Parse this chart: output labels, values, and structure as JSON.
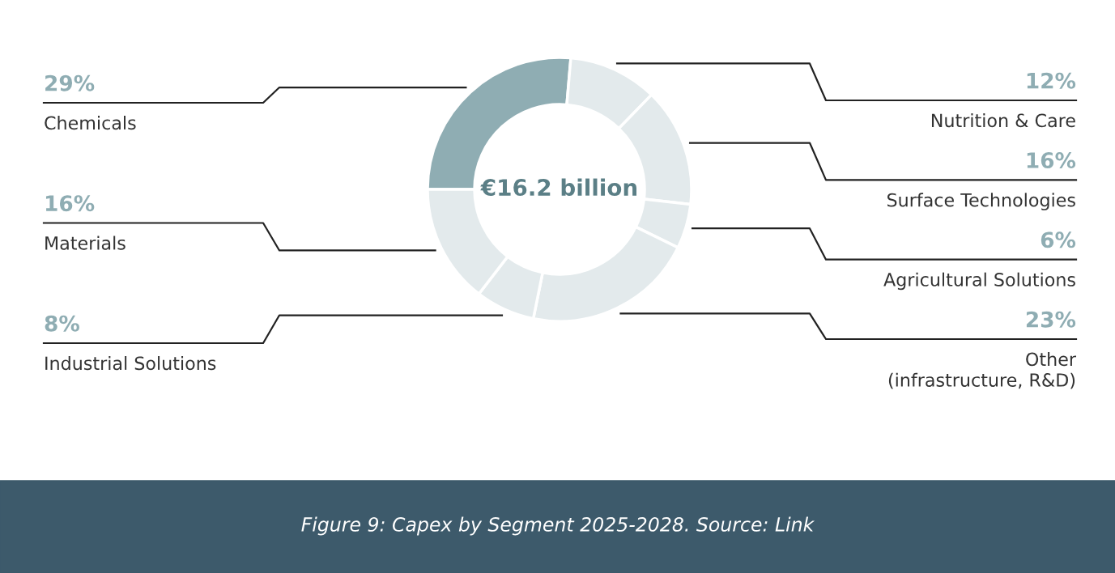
{
  "chart_data": {
    "type": "donut",
    "categories": [
      "Chemicals",
      "Nutrition & Care",
      "Surface Technologies",
      "Agricultural Solutions",
      "Other\n(infrastructure, R&D)",
      "Industrial Solutions",
      "Materials"
    ],
    "values": [
      29,
      12,
      16,
      6,
      23,
      8,
      16
    ],
    "value_labels": [
      "29%",
      "12%",
      "16%",
      "6%",
      "23%",
      "8%",
      "16%"
    ],
    "colors": [
      "#8fadb3",
      "#e3eaec",
      "#e3eaec",
      "#e3eaec",
      "#e3eaec",
      "#e3eaec",
      "#e3eaec"
    ],
    "annotations": [
      "€16.2 billion",
      "Figure 9: Capex by Segment 2025-2028. Source: Link"
    ]
  }
}
